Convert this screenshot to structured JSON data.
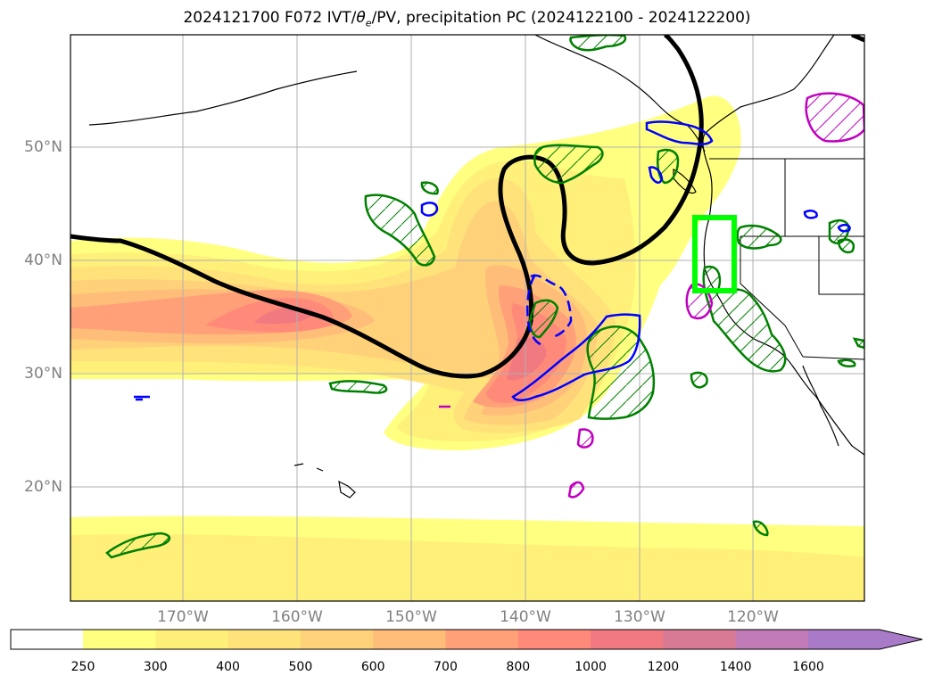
{
  "title": {
    "prefix": "2024121700 F072 IVT/",
    "theta_symbol": "θ",
    "theta_sub": "e",
    "suffix": "/PV, precipitation PC (2024122100 - 2024122200)"
  },
  "lat_labels": [
    "50°N",
    "40°N",
    "30°N",
    "20°N"
  ],
  "lon_labels": [
    "170°W",
    "160°W",
    "150°W",
    "140°W",
    "130°W",
    "120°W"
  ],
  "colorbar": {
    "ticks": [
      "250",
      "300",
      "400",
      "500",
      "600",
      "700",
      "800",
      "1000",
      "1200",
      "1400",
      "1600"
    ],
    "colors": [
      "#ffff80",
      "#fff07a",
      "#ffe37a",
      "#ffd27a",
      "#ffbd7a",
      "#ffa078",
      "#ff8a7a",
      "#f07a80",
      "#d97a95",
      "#c07ab5",
      "#a87ac8"
    ],
    "extend": "max"
  },
  "map_data": {
    "type": "map",
    "lat_range": [
      10,
      60
    ],
    "lon_range": [
      -180,
      -110
    ],
    "field": "integrated vapor transport (IVT)",
    "contour_levels": [
      250,
      300,
      400,
      500,
      600,
      700,
      800,
      1000,
      1200,
      1400,
      1600
    ],
    "thick_black_line": "PV / theta_e contour",
    "box_color": "#00ff00"
  }
}
